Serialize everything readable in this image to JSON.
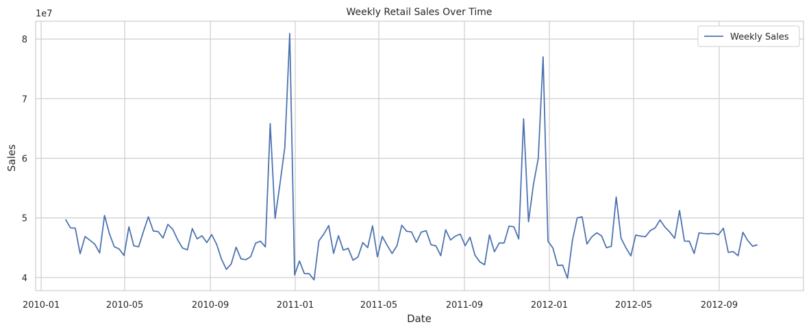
{
  "chart_data": {
    "type": "line",
    "title": "Weekly Retail Sales Over Time",
    "xlabel": "Date",
    "ylabel": "Sales",
    "y_offset_label": "1e7",
    "x_tick_labels": [
      "2010-01",
      "2010-05",
      "2010-09",
      "2011-01",
      "2011-05",
      "2011-09",
      "2012-01",
      "2012-05",
      "2012-09"
    ],
    "y_tick_labels": [
      "4",
      "5",
      "6",
      "7",
      "8"
    ],
    "x_range": [
      "2009-12-24",
      "2012-12-31"
    ],
    "ylim": [
      37800000,
      83000000
    ],
    "grid": true,
    "legend_position": "top-right",
    "line_color": "#4c72b0",
    "series": [
      {
        "name": "Weekly Sales",
        "x": [
          "2010-02-05",
          "2010-02-12",
          "2010-02-19",
          "2010-02-26",
          "2010-03-05",
          "2010-03-12",
          "2010-03-19",
          "2010-03-26",
          "2010-04-02",
          "2010-04-09",
          "2010-04-16",
          "2010-04-23",
          "2010-04-30",
          "2010-05-07",
          "2010-05-14",
          "2010-05-21",
          "2010-05-28",
          "2010-06-04",
          "2010-06-11",
          "2010-06-18",
          "2010-06-25",
          "2010-07-02",
          "2010-07-09",
          "2010-07-16",
          "2010-07-23",
          "2010-07-30",
          "2010-08-06",
          "2010-08-13",
          "2010-08-20",
          "2010-08-27",
          "2010-09-03",
          "2010-09-10",
          "2010-09-17",
          "2010-09-24",
          "2010-10-01",
          "2010-10-08",
          "2010-10-15",
          "2010-10-22",
          "2010-10-29",
          "2010-11-05",
          "2010-11-12",
          "2010-11-19",
          "2010-11-26",
          "2010-12-03",
          "2010-12-10",
          "2010-12-17",
          "2010-12-24",
          "2010-12-31",
          "2011-01-07",
          "2011-01-14",
          "2011-01-21",
          "2011-01-28",
          "2011-02-04",
          "2011-02-11",
          "2011-02-18",
          "2011-02-25",
          "2011-03-04",
          "2011-03-11",
          "2011-03-18",
          "2011-03-25",
          "2011-04-01",
          "2011-04-08",
          "2011-04-15",
          "2011-04-22",
          "2011-04-29",
          "2011-05-06",
          "2011-05-13",
          "2011-05-20",
          "2011-05-27",
          "2011-06-03",
          "2011-06-10",
          "2011-06-17",
          "2011-06-24",
          "2011-07-01",
          "2011-07-08",
          "2011-07-15",
          "2011-07-22",
          "2011-07-29",
          "2011-08-05",
          "2011-08-12",
          "2011-08-19",
          "2011-08-26",
          "2011-09-02",
          "2011-09-09",
          "2011-09-16",
          "2011-09-23",
          "2011-09-30",
          "2011-10-07",
          "2011-10-14",
          "2011-10-21",
          "2011-10-28",
          "2011-11-04",
          "2011-11-11",
          "2011-11-18",
          "2011-11-25",
          "2011-12-02",
          "2011-12-09",
          "2011-12-16",
          "2011-12-23",
          "2011-12-30",
          "2012-01-06",
          "2012-01-13",
          "2012-01-20",
          "2012-01-27",
          "2012-02-03",
          "2012-02-10",
          "2012-02-17",
          "2012-02-24",
          "2012-03-02",
          "2012-03-09",
          "2012-03-16",
          "2012-03-23",
          "2012-03-30",
          "2012-04-06",
          "2012-04-13",
          "2012-04-20",
          "2012-04-27",
          "2012-05-04",
          "2012-05-11",
          "2012-05-18",
          "2012-05-25",
          "2012-06-01",
          "2012-06-08",
          "2012-06-15",
          "2012-06-22",
          "2012-06-29",
          "2012-07-06",
          "2012-07-13",
          "2012-07-20",
          "2012-07-27",
          "2012-08-03",
          "2012-08-10",
          "2012-08-17",
          "2012-08-24",
          "2012-08-31",
          "2012-09-07",
          "2012-09-14",
          "2012-09-21",
          "2012-09-28",
          "2012-10-05",
          "2012-10-12",
          "2012-10-19",
          "2012-10-26"
        ],
        "values": [
          49750000,
          48340000,
          48280000,
          44000000,
          46880000,
          46250000,
          45590000,
          44130000,
          50420000,
          47370000,
          45180000,
          44780000,
          43700000,
          48500000,
          45320000,
          45150000,
          47760000,
          50190000,
          47820000,
          47700000,
          46650000,
          48920000,
          48100000,
          46350000,
          44960000,
          44650000,
          48200000,
          46480000,
          47000000,
          45870000,
          47200000,
          45600000,
          43080000,
          41370000,
          42280000,
          45090000,
          43130000,
          42990000,
          43500000,
          45770000,
          46100000,
          45140000,
          65820000,
          49900000,
          55660000,
          61820000,
          80930000,
          40430000,
          42780000,
          40670000,
          40650000,
          39600000,
          46150000,
          47300000,
          48720000,
          44050000,
          47020000,
          44590000,
          44900000,
          42900000,
          43460000,
          45860000,
          45020000,
          48670000,
          43480000,
          46890000,
          45420000,
          44030000,
          45330000,
          48770000,
          47760000,
          47650000,
          45920000,
          47620000,
          47850000,
          45500000,
          45310000,
          43670000,
          48010000,
          46300000,
          46940000,
          47290000,
          45350000,
          46760000,
          43790000,
          42640000,
          42140000,
          47150000,
          44330000,
          45800000,
          45800000,
          48630000,
          48520000,
          46470000,
          66640000,
          49360000,
          55560000,
          59970000,
          77010000,
          46080000,
          44970000,
          42020000,
          42080000,
          39870000,
          46160000,
          50010000,
          50190000,
          45620000,
          46830000,
          47500000,
          46980000,
          44990000,
          45240000,
          53500000,
          46600000,
          44980000,
          43630000,
          47130000,
          46940000,
          46850000,
          47870000,
          48330000,
          49660000,
          48460000,
          47620000,
          46590000,
          51240000,
          46120000,
          46100000,
          44040000,
          47490000,
          47380000,
          47350000,
          47400000,
          47180000,
          48270000,
          44220000,
          44350000,
          43660000,
          47580000,
          46200000,
          45250000,
          45500000
        ]
      }
    ]
  }
}
